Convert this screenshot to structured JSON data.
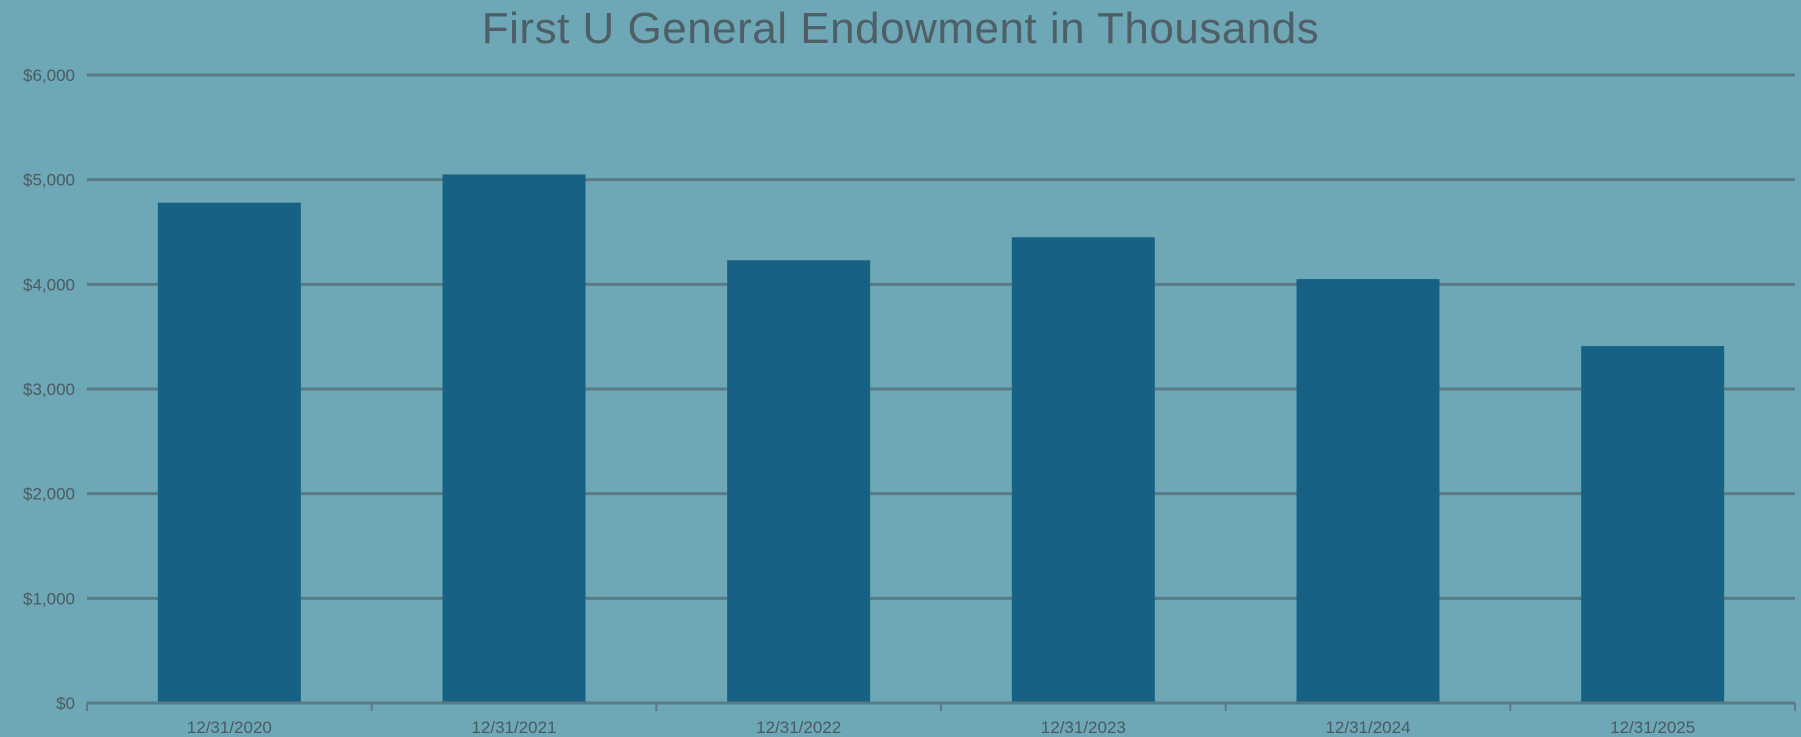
{
  "colors": {
    "background": "#6ea8b6",
    "bar": "#176184",
    "gridline": "#5a7b86",
    "axis": "#5a7b86",
    "title": "#4f5f66",
    "tick_text": "#4a5a60"
  },
  "chart_data": {
    "type": "bar",
    "title": "First U General Endowment in Thousands",
    "xlabel": "",
    "ylabel": "",
    "categories": [
      "12/31/2020",
      "12/31/2021",
      "12/31/2022",
      "12/31/2023",
      "12/31/2024",
      "12/31/2025"
    ],
    "values": [
      4780,
      5050,
      4230,
      4450,
      4050,
      3410
    ],
    "ylim": [
      0,
      6000
    ],
    "yticks": [
      0,
      1000,
      2000,
      3000,
      4000,
      5000,
      6000
    ],
    "ytick_labels": [
      "$0",
      "$1,000",
      "$2,000",
      "$3,000",
      "$4,000",
      "$5,000",
      "$6,000"
    ],
    "grid": true,
    "legend": "none"
  }
}
